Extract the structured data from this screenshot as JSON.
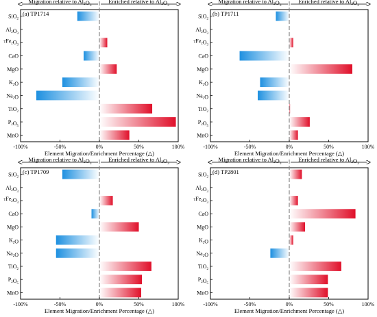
{
  "chart_data": [
    {
      "type": "bar",
      "orientation": "horizontal",
      "panel": "(a) TP1714",
      "header_left": "Migration relative to Al₂O₃",
      "header_right": "Enriched relative to Al₂O₃",
      "xlabel": "Element Migration/Enrichment Percentage (△)",
      "xlim": [
        -100,
        100
      ],
      "x_ticks": [
        "-100%",
        "-50%",
        "0%",
        "50%",
        "100%"
      ],
      "categories": [
        "SiO₂",
        "Al₂O₃",
        "ᵀFe₂O₃",
        "CaO",
        "MgO",
        "K₂O",
        "Na₂O",
        "TiO₂",
        "P₂O₅",
        "MnO"
      ],
      "values": [
        -28,
        0,
        10,
        -20,
        22,
        -47,
        -80,
        67,
        97,
        38
      ]
    },
    {
      "type": "bar",
      "orientation": "horizontal",
      "panel": "(b) TP1711",
      "header_left": "Migration relative to Al₂O₃",
      "header_right": "Enriched relative to Al₂O₃",
      "xlabel": "Element Migration/Enrichment Percentage (△)",
      "xlim": [
        -100,
        100
      ],
      "x_ticks": [
        "-100%",
        "-50%",
        "0%",
        "50%",
        "100%"
      ],
      "categories": [
        "SiO₂",
        "Al₂O₃",
        "ᵀFe₂O₃",
        "CaO",
        "MgO",
        "K₂O",
        "Na₂O",
        "TiO₂",
        "P₂O₅",
        "MnO"
      ],
      "values": [
        -17,
        0,
        5,
        -63,
        80,
        -37,
        -40,
        1,
        26,
        11
      ]
    },
    {
      "type": "bar",
      "orientation": "horizontal",
      "panel": "(c) TP1709",
      "header_left": "Migration relative to Al₂O₃",
      "header_right": "Enriched relative to Al₂O₃",
      "xlabel": "Element Migration/Enrichment Percentage (△)",
      "xlim": [
        -100,
        100
      ],
      "x_ticks": [
        "-100%",
        "-50%",
        "0%",
        "50%",
        "100%"
      ],
      "categories": [
        "SiO₂",
        "Al₂O₃",
        "ᵀFe₂O₃",
        "CaO",
        "MgO",
        "K₂O",
        "Na₂O",
        "TiO₂",
        "P₂O₅",
        "MnO"
      ],
      "values": [
        -47,
        0,
        17,
        -10,
        50,
        -55,
        -55,
        66,
        54,
        53
      ]
    },
    {
      "type": "bar",
      "orientation": "horizontal",
      "panel": "(d) TP2801",
      "header_left": "Migration relative to Al₂O₃",
      "header_right": "Enriched relative to Al₂O₃",
      "xlabel": "Element Migration/Enrichment Percentage (△)",
      "xlim": [
        -100,
        100
      ],
      "x_ticks": [
        "-100%",
        "-50%",
        "0%",
        "50%",
        "100%"
      ],
      "categories": [
        "SiO₂",
        "Al₂O₃",
        "ᵀFe₂O₃",
        "CaO",
        "MgO",
        "K₂O",
        "Na₂O",
        "TiO₂",
        "P₂O₅",
        "MnO"
      ],
      "values": [
        16,
        0,
        11,
        84,
        20,
        5,
        -24,
        66,
        49,
        49
      ]
    }
  ],
  "colors": {
    "negative_dark": "#1e90e0",
    "negative_light": "#ffffff",
    "positive_dark": "#e0102a",
    "positive_light": "#ffffff",
    "zero_line": "#888888"
  }
}
